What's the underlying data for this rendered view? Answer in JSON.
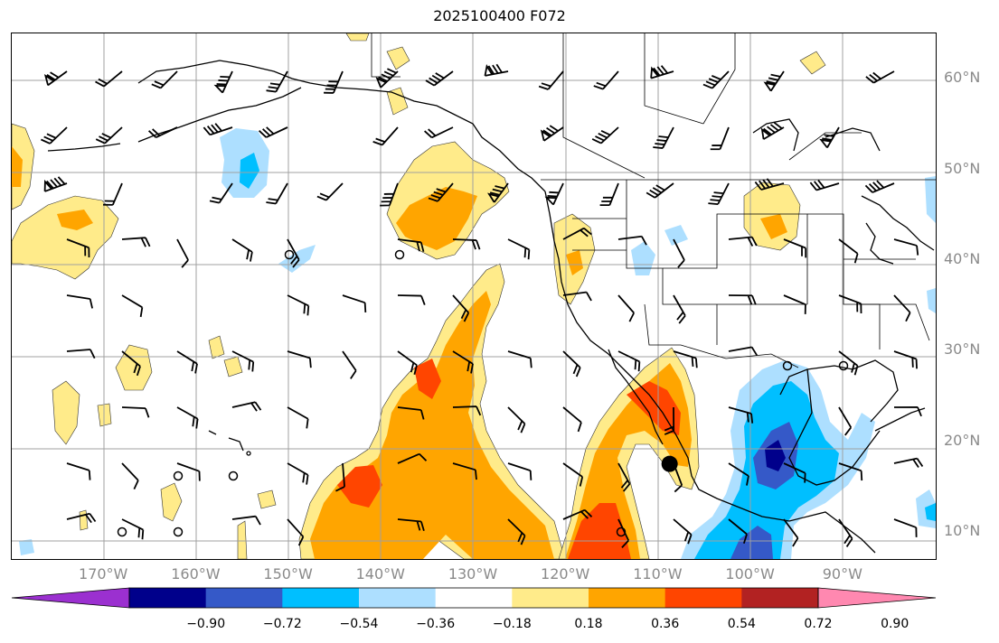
{
  "title": "2025100400 F072",
  "latitude_labels": [
    "60°N",
    "50°N",
    "40°N",
    "30°N",
    "20°N",
    "10°N"
  ],
  "longitude_labels": [
    "170°W",
    "160°W",
    "150°W",
    "140°W",
    "130°W",
    "120°W",
    "110°W",
    "100°W",
    "90°W"
  ],
  "colorbar": {
    "tick_labels": [
      "−0.90",
      "−0.72",
      "−0.54",
      "−0.36",
      "−0.18",
      "0.18",
      "0.36",
      "0.54",
      "0.72",
      "0.90"
    ],
    "colors": [
      "#9b30d0",
      "#00008b",
      "#3559c8",
      "#00bfff",
      "#addfff",
      "#ffffff",
      "#ffeb8a",
      "#ffa500",
      "#ff4500",
      "#b22222",
      "#ff88b0"
    ],
    "extend": "both"
  },
  "map": {
    "extent_lon": [
      -180,
      -80
    ],
    "extent_lat": [
      7,
      65
    ],
    "gridlines": true,
    "wind_barbs": true,
    "marked_point": {
      "lon": -108.8,
      "lat": 17.5,
      "name": "black-dot"
    }
  }
}
